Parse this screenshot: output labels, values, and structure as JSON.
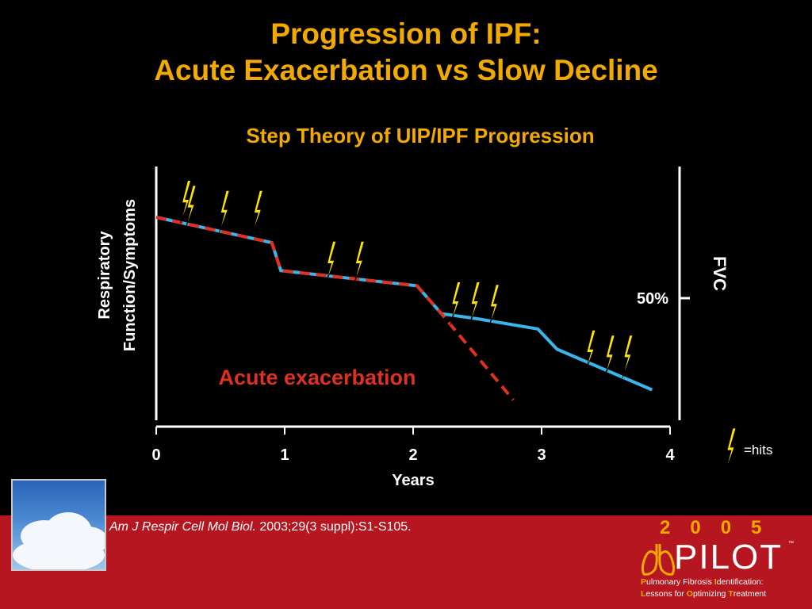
{
  "colors": {
    "background": "#000000",
    "title": "#f2a900",
    "band": "#b5161f",
    "slow_line": "#3bb5ea",
    "acute_line": "#e03020",
    "acute_label": "#e03020",
    "hit": "#ffe400",
    "white_text": "#ffffff"
  },
  "header": {
    "title_line1": "Progression of IPF:",
    "title_line2": "Acute Exacerbation vs Slow Decline",
    "subtitle": "Step Theory of UIP/IPF Progression"
  },
  "chart_data": {
    "type": "line",
    "xlabel": "Years",
    "ylabel_line1": "Respiratory",
    "ylabel_line2": "Function/Symptoms",
    "right_axis_label": "FVC",
    "right_tick_label": "50%",
    "right_tick_value": 0.5,
    "x_ticks": [
      0,
      1,
      2,
      3,
      4
    ],
    "x_tick_labels": [
      "0",
      "1",
      "2",
      "3",
      "4"
    ],
    "xlim": [
      0,
      4
    ],
    "ylim": [
      0,
      1
    ],
    "grid": false,
    "series": [
      {
        "key": "slow",
        "style": "solid",
        "x": [
          0.0,
          0.9,
          0.97,
          2.03,
          2.22,
          2.5,
          2.97,
          3.12,
          3.86
        ],
        "y": [
          0.8,
          0.7,
          0.59,
          0.53,
          0.42,
          0.4,
          0.36,
          0.28,
          0.12
        ]
      },
      {
        "key": "acute",
        "style": "dashed",
        "x": [
          0.0,
          0.9,
          0.97,
          2.03,
          2.22,
          2.78
        ],
        "y": [
          0.8,
          0.7,
          0.59,
          0.53,
          0.42,
          0.08
        ]
      }
    ],
    "annotations": [
      {
        "text": "Acute exacerbation",
        "key": "acute_label"
      }
    ],
    "hits": {
      "legend": "=hits",
      "x": [
        0.22,
        0.26,
        0.52,
        0.78,
        1.35,
        1.57,
        2.32,
        2.47,
        2.62,
        3.37,
        3.52,
        3.66
      ],
      "y": [
        0.82,
        0.8,
        0.78,
        0.78,
        0.58,
        0.58,
        0.42,
        0.42,
        0.41,
        0.23,
        0.21,
        0.21
      ]
    }
  },
  "footer": {
    "citation_journal": "Am J Respir Cell Mol Biol.",
    "citation_rest": " 2003;29(3 suppl):S1-S105.",
    "logo_year": "2005",
    "logo_word": "PILOT",
    "logo_tm": "™",
    "logo_line1_parts": [
      "P",
      "ulmonary Fibrosis ",
      "I",
      "dentification:"
    ],
    "logo_line2_parts": [
      "L",
      "essons for ",
      "O",
      "ptimizing ",
      "T",
      "reatment"
    ]
  }
}
